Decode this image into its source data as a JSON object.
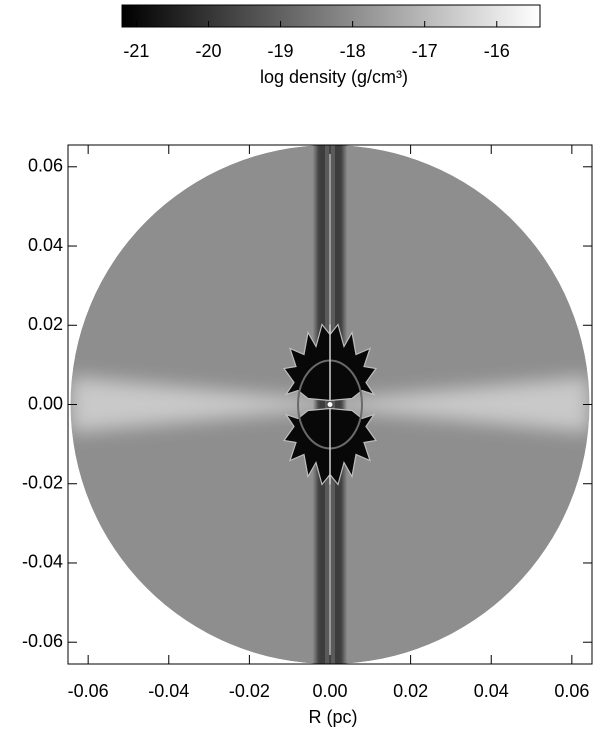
{
  "chart_data": {
    "type": "density-map",
    "colorbar": {
      "label": "log density (g/cm³)",
      "lim": [
        -21.2,
        -15.4
      ],
      "ticks": [
        -21,
        -20,
        -19,
        -18,
        -17,
        -16
      ],
      "colors": [
        "#000000",
        "#ffffff"
      ]
    },
    "xlabel": "R (pc)",
    "xlim": [
      -0.065,
      0.065
    ],
    "xticks": [
      -0.06,
      -0.04,
      -0.02,
      {
        "value": 0,
        "label": "0.00"
      },
      0.02,
      0.04,
      0.06
    ],
    "ylim": [
      -0.0655,
      0.0655
    ],
    "yticks": [
      -0.06,
      -0.04,
      -0.02,
      {
        "value": 0,
        "label": "0.00"
      },
      0.02,
      0.04,
      0.06
    ]
  }
}
